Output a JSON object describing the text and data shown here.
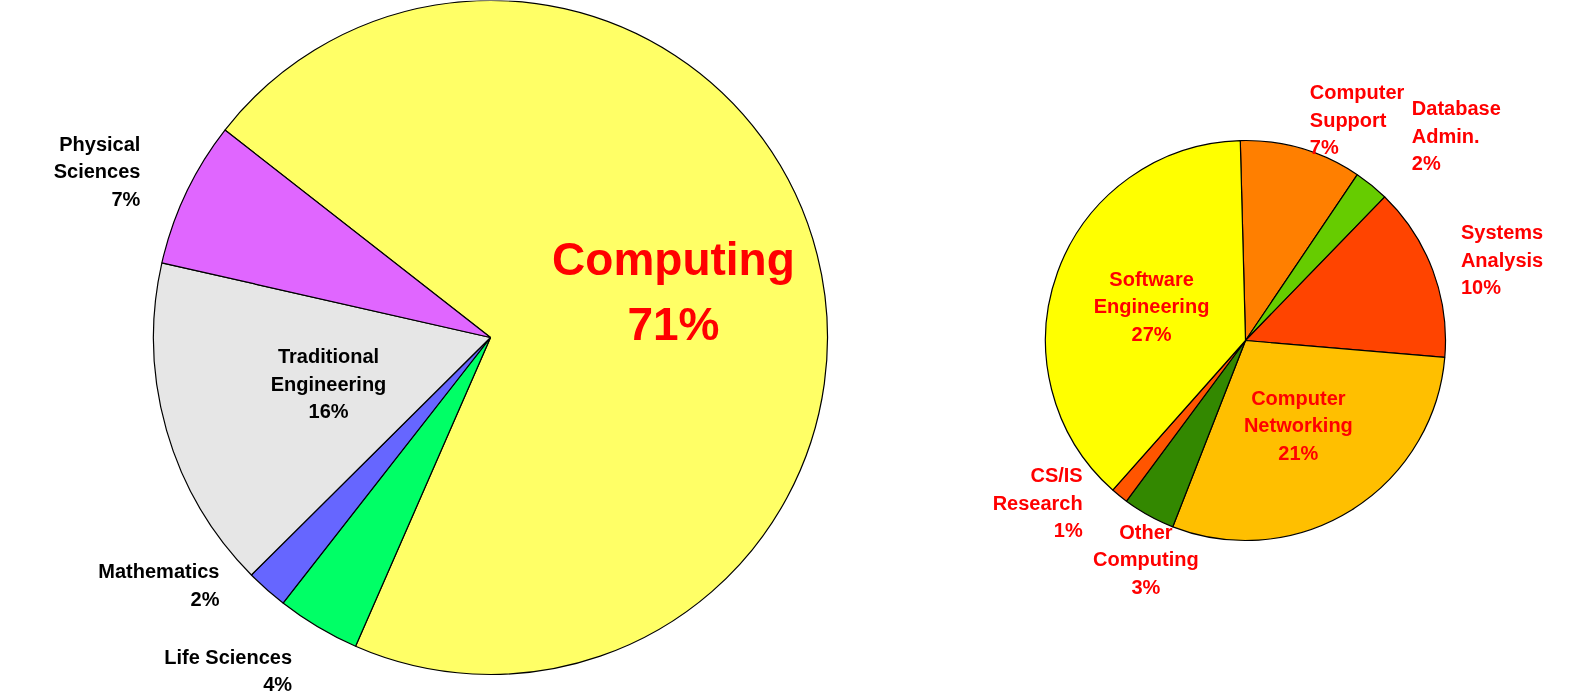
{
  "chart_data": [
    {
      "type": "pie",
      "categories": [
        "Computing",
        "Life Sciences",
        "Mathematics",
        "Traditional Engineering",
        "Physical Sciences"
      ],
      "values": [
        71,
        4,
        2,
        16,
        7
      ],
      "colors": [
        "#ffff66",
        "#00ff66",
        "#6666ff",
        "#e6e6e6",
        "#e066ff"
      ],
      "value_labels": [
        "71%",
        "4%",
        "2%",
        "16%",
        "7%"
      ]
    },
    {
      "type": "pie",
      "categories": [
        "Computer Support",
        "Database Admin.",
        "Systems Analysis",
        "Computer Networking",
        "Other Computing",
        "CS/IS Research",
        "Software Engineering"
      ],
      "values": [
        7,
        2,
        10,
        21,
        3,
        1,
        27
      ],
      "colors": [
        "#ff7f00",
        "#66cc00",
        "#ff4400",
        "#ffbf00",
        "#338800",
        "#ff5500",
        "#ffff00"
      ],
      "value_labels": [
        "7%",
        "2%",
        "10%",
        "21%",
        "3%",
        "1%",
        "27%"
      ]
    }
  ]
}
